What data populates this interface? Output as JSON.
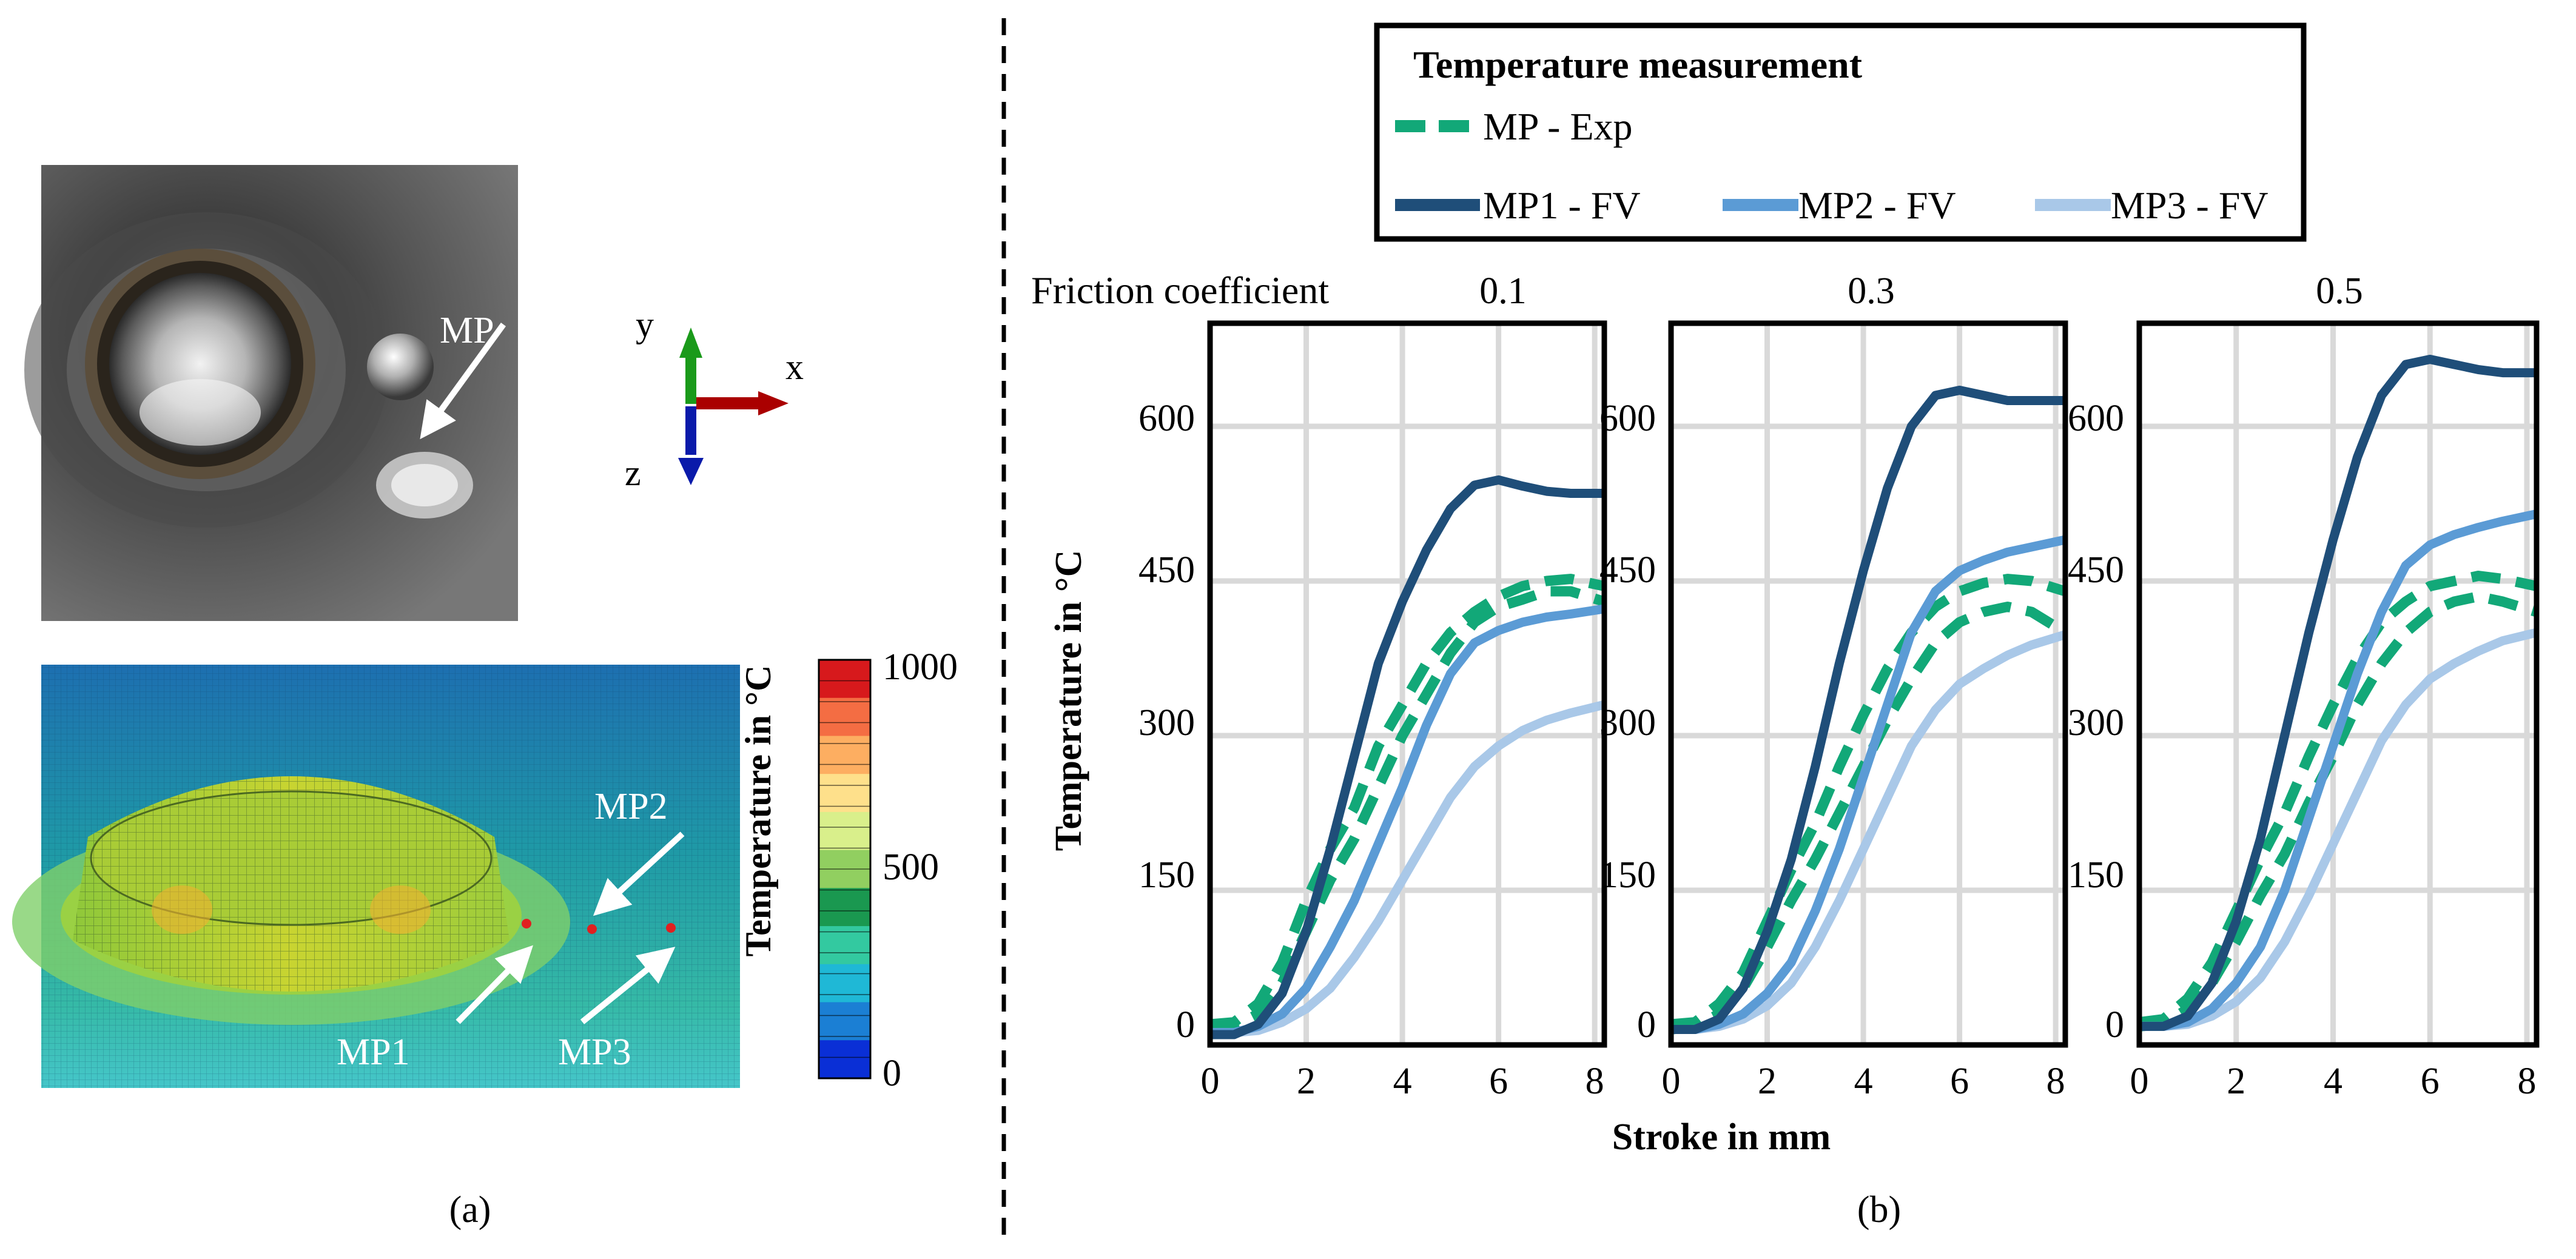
{
  "panel_a": {
    "label": "(a)",
    "photo_label": "MP",
    "axes": {
      "y": "y",
      "x": "x",
      "z": "z"
    },
    "sim_labels": [
      "MP1",
      "MP2",
      "MP3"
    ],
    "colorbar": {
      "title": "Temperature in °C",
      "ticks": [
        "1000",
        "500",
        "0"
      ],
      "colors": [
        "#d7191c",
        "#f46d43",
        "#fdae61",
        "#fee08b",
        "#d9ef8b",
        "#91cf60",
        "#1a9850",
        "#33c9a0",
        "#1fb8d6",
        "#1b7fd4",
        "#0a2fd6"
      ]
    }
  },
  "panel_b": {
    "label": "(b)",
    "legend": {
      "title": "Temperature measurement",
      "entries": [
        {
          "name": "MP   - Exp",
          "color": "#12a878",
          "dashed": true
        },
        {
          "name": "MP1 - FV",
          "color": "#1f4e79",
          "dashed": false
        },
        {
          "name": "MP2 - FV",
          "color": "#5b9bd5",
          "dashed": false
        },
        {
          "name": "MP3 - FV",
          "color": "#a9c8e8",
          "dashed": false
        }
      ]
    },
    "friction_label": "Friction coefficient"
  },
  "chart_data": [
    {
      "type": "line",
      "title": "0.1",
      "xlabel": "Stroke in mm",
      "ylabel": "Temperature in °C",
      "xlim": [
        0,
        8.2
      ],
      "ylim": [
        0,
        700
      ],
      "xticks": [
        0,
        2,
        4,
        6,
        8
      ],
      "yticks": [
        0,
        150,
        300,
        450,
        600
      ],
      "grid": true,
      "series": [
        {
          "name": "MP1 - FV",
          "x": [
            0,
            0.5,
            1,
            1.5,
            2,
            2.5,
            3,
            3.5,
            4,
            4.5,
            5,
            5.5,
            6,
            6.5,
            7,
            7.5,
            8.2
          ],
          "y": [
            10,
            10,
            20,
            50,
            110,
            190,
            280,
            370,
            430,
            480,
            520,
            543,
            548,
            542,
            537,
            535,
            535
          ]
        },
        {
          "name": "MP2 - FV",
          "x": [
            0,
            0.5,
            1,
            1.5,
            2,
            2.5,
            3,
            3.5,
            4,
            4.5,
            5,
            5.5,
            6,
            6.5,
            7,
            7.5,
            8.2
          ],
          "y": [
            12,
            12,
            18,
            30,
            55,
            95,
            140,
            195,
            250,
            310,
            360,
            390,
            402,
            410,
            415,
            418,
            423
          ]
        },
        {
          "name": "MP3 - FV",
          "x": [
            0,
            0.5,
            1,
            1.5,
            2,
            2.5,
            3,
            3.5,
            4,
            4.5,
            5,
            5.5,
            6,
            6.5,
            7,
            7.5,
            8.2
          ],
          "y": [
            12,
            12,
            14,
            22,
            35,
            55,
            85,
            120,
            160,
            200,
            240,
            270,
            290,
            305,
            315,
            322,
            330
          ]
        },
        {
          "name": "MP - Exp",
          "x": [
            0,
            0.5,
            1,
            1.5,
            2,
            2.5,
            3,
            3.5,
            4,
            4.5,
            5,
            5.5,
            6,
            6.5,
            7,
            7.5,
            8.2
          ],
          "y": [
            20,
            22,
            40,
            80,
            140,
            190,
            230,
            290,
            330,
            370,
            400,
            420,
            435,
            445,
            450,
            452,
            445
          ]
        },
        {
          "name": "MP - Exp",
          "x": [
            0,
            0.5,
            1,
            1.5,
            2,
            2.5,
            3,
            3.5,
            4,
            4.5,
            5,
            5.5,
            6,
            6.5,
            7,
            7.5,
            8.2
          ],
          "y": [
            15,
            18,
            30,
            60,
            110,
            160,
            200,
            250,
            300,
            340,
            380,
            410,
            425,
            432,
            440,
            440,
            430
          ]
        }
      ]
    },
    {
      "type": "line",
      "title": "0.3",
      "xlabel": "Stroke in mm",
      "ylabel": "",
      "xlim": [
        0,
        8.2
      ],
      "ylim": [
        0,
        700
      ],
      "xticks": [
        0,
        2,
        4,
        6,
        8
      ],
      "yticks": [
        0,
        150,
        300,
        450,
        600
      ],
      "grid": true,
      "series": [
        {
          "name": "MP1 - FV",
          "x": [
            0,
            0.5,
            1,
            1.5,
            2,
            2.5,
            3,
            3.5,
            4,
            4.5,
            5,
            5.5,
            6,
            6.5,
            7,
            7.5,
            8.2
          ],
          "y": [
            15,
            15,
            25,
            55,
            110,
            180,
            270,
            370,
            460,
            540,
            600,
            630,
            635,
            630,
            625,
            625,
            625
          ]
        },
        {
          "name": "MP2 - FV",
          "x": [
            0,
            0.5,
            1,
            1.5,
            2,
            2.5,
            3,
            3.5,
            4,
            4.5,
            5,
            5.5,
            6,
            6.5,
            7,
            7.5,
            8.2
          ],
          "y": [
            15,
            15,
            20,
            30,
            50,
            80,
            130,
            190,
            260,
            330,
            400,
            440,
            460,
            470,
            478,
            483,
            490
          ]
        },
        {
          "name": "MP3 - FV",
          "x": [
            0,
            0.5,
            1,
            1.5,
            2,
            2.5,
            3,
            3.5,
            4,
            4.5,
            5,
            5.5,
            6,
            6.5,
            7,
            7.5,
            8.2
          ],
          "y": [
            15,
            15,
            18,
            25,
            38,
            60,
            95,
            140,
            190,
            240,
            290,
            325,
            350,
            365,
            378,
            388,
            398
          ]
        },
        {
          "name": "MP - Exp",
          "x": [
            0,
            0.5,
            1,
            1.5,
            2,
            2.5,
            3,
            3.5,
            4,
            4.5,
            5,
            5.5,
            6,
            6.5,
            7,
            7.5,
            8.2
          ],
          "y": [
            20,
            22,
            40,
            70,
            120,
            170,
            215,
            270,
            320,
            365,
            400,
            425,
            440,
            448,
            452,
            450,
            440
          ]
        },
        {
          "name": "MP - Exp",
          "x": [
            0,
            0.5,
            1,
            1.5,
            2,
            2.5,
            3,
            3.5,
            4,
            4.5,
            5,
            5.5,
            6,
            6.5,
            7,
            7.5,
            8.2
          ],
          "y": [
            15,
            18,
            30,
            55,
            95,
            140,
            180,
            225,
            270,
            315,
            355,
            390,
            410,
            420,
            425,
            420,
            400
          ]
        }
      ]
    },
    {
      "type": "line",
      "title": "0.5",
      "xlabel": "",
      "ylabel": "",
      "xlim": [
        0,
        8.2
      ],
      "ylim": [
        0,
        700
      ],
      "xticks": [
        0,
        2,
        4,
        6,
        8
      ],
      "yticks": [
        0,
        150,
        300,
        450,
        600
      ],
      "grid": true,
      "series": [
        {
          "name": "MP1 - FV",
          "x": [
            0,
            0.5,
            1,
            1.5,
            2,
            2.5,
            3,
            3.5,
            4,
            4.5,
            5,
            5.5,
            6,
            6.5,
            7,
            7.5,
            8.2
          ],
          "y": [
            18,
            18,
            28,
            60,
            120,
            200,
            300,
            400,
            490,
            570,
            630,
            660,
            665,
            660,
            655,
            652,
            652
          ]
        },
        {
          "name": "MP2 - FV",
          "x": [
            0,
            0.5,
            1,
            1.5,
            2,
            2.5,
            3,
            3.5,
            4,
            4.5,
            5,
            5.5,
            6,
            6.5,
            7,
            7.5,
            8.2
          ],
          "y": [
            18,
            18,
            22,
            35,
            60,
            95,
            150,
            220,
            290,
            360,
            420,
            465,
            485,
            495,
            502,
            508,
            515
          ]
        },
        {
          "name": "MP3 - FV",
          "x": [
            0,
            0.5,
            1,
            1.5,
            2,
            2.5,
            3,
            3.5,
            4,
            4.5,
            5,
            5.5,
            6,
            6.5,
            7,
            7.5,
            8.2
          ],
          "y": [
            18,
            18,
            20,
            28,
            42,
            65,
            100,
            145,
            195,
            245,
            295,
            330,
            355,
            370,
            382,
            392,
            400
          ]
        },
        {
          "name": "MP - Exp",
          "x": [
            0,
            0.5,
            1,
            1.5,
            2,
            2.5,
            3,
            3.5,
            4,
            4.5,
            5,
            5.5,
            6,
            6.5,
            7,
            7.5,
            8.2
          ],
          "y": [
            22,
            25,
            45,
            80,
            130,
            180,
            225,
            280,
            330,
            375,
            410,
            430,
            445,
            450,
            455,
            452,
            445
          ]
        },
        {
          "name": "MP - Exp",
          "x": [
            0,
            0.5,
            1,
            1.5,
            2,
            2.5,
            3,
            3.5,
            4,
            4.5,
            5,
            5.5,
            6,
            6.5,
            7,
            7.5,
            8.2
          ],
          "y": [
            18,
            20,
            35,
            60,
            100,
            145,
            185,
            235,
            280,
            330,
            370,
            400,
            420,
            430,
            435,
            430,
            420
          ]
        }
      ]
    }
  ]
}
